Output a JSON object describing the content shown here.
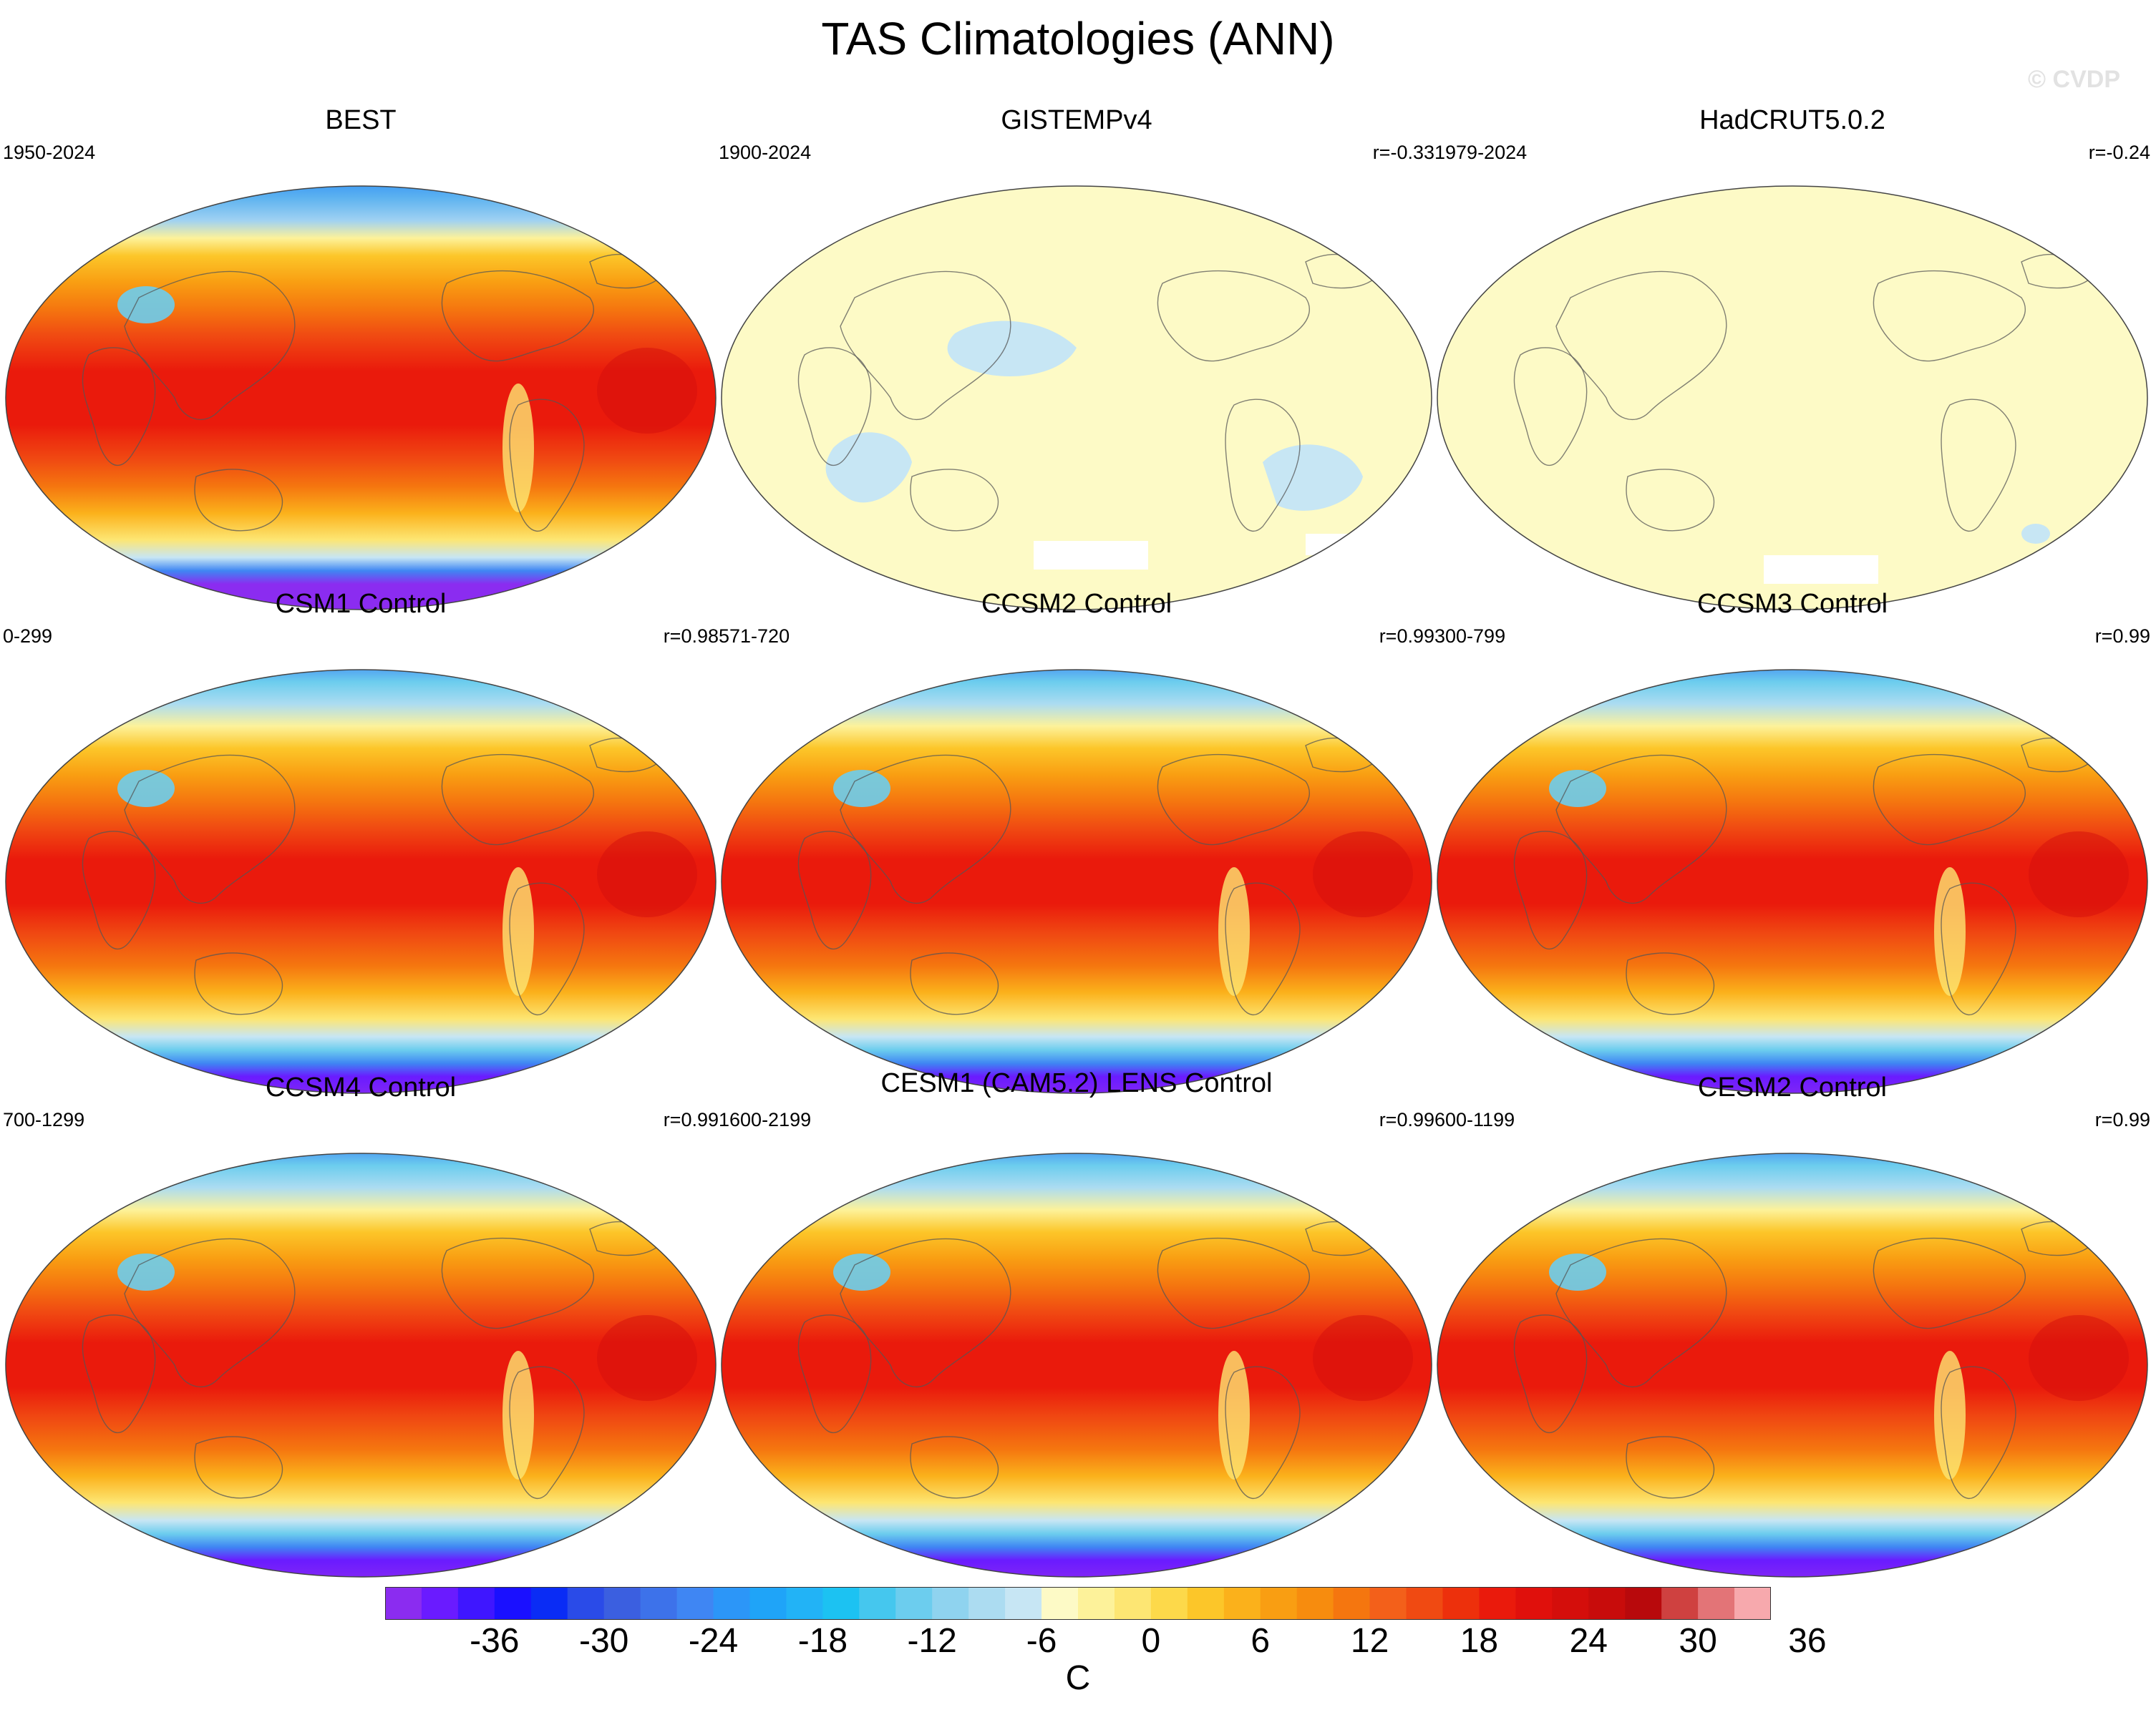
{
  "figure": {
    "title": "TAS Climatologies (ANN)",
    "watermark": "© CVDP",
    "units": "C"
  },
  "colorbar": {
    "tick_labels": [
      "-36",
      "-30",
      "-24",
      "-18",
      "-12",
      "-6",
      "0",
      "6",
      "12",
      "18",
      "24",
      "30",
      "36"
    ],
    "colors": [
      "#8b2cf0",
      "#6a1bff",
      "#3f16ff",
      "#1a10ff",
      "#0a2cf5",
      "#2a4be8",
      "#3b5fe0",
      "#3d72ea",
      "#3f86f3",
      "#2c96f8",
      "#1fa4f8",
      "#22b3f6",
      "#1cc2f2",
      "#45c7ee",
      "#6ccdee",
      "#8fd3ef",
      "#acdcf1",
      "#c7e6f4",
      "#fdfac6",
      "#fdf29a",
      "#fde673",
      "#fdd94a",
      "#fcc629",
      "#fbb11b",
      "#f99e12",
      "#f78c0e",
      "#f5760f",
      "#f3601a",
      "#f04a12",
      "#ed300c",
      "#ea1a0c",
      "#e0100c",
      "#d40e0b",
      "#c80c0b",
      "#b8090c",
      "#cf4140",
      "#e37477",
      "#f7a9ad"
    ]
  },
  "panels": [
    {
      "title": "BEST",
      "period": "1950-2024",
      "corr": "",
      "style": "obs"
    },
    {
      "title": "GISTEMPv4",
      "period": "1900-2024",
      "corr": "r=-0.33",
      "style": "pale1"
    },
    {
      "title": "HadCRUT5.0.2",
      "period": "1979-2024",
      "corr": "r=-0.24",
      "style": "pale2"
    },
    {
      "title": "CSM1 Control",
      "period": "0-299",
      "corr": "r=0.98",
      "style": "model"
    },
    {
      "title": "CCSM2 Control",
      "period": "571-720",
      "corr": "r=0.99",
      "style": "model"
    },
    {
      "title": "CCSM3 Control",
      "period": "300-799",
      "corr": "r=0.99",
      "style": "model"
    },
    {
      "title": "CCSM4 Control",
      "period": "700-1299",
      "corr": "r=0.99",
      "style": "model"
    },
    {
      "title": "CESM1 (CAM5.2) LENS Control",
      "period": "1600-2199",
      "corr": "r=0.99",
      "style": "model"
    },
    {
      "title": "CESM2 Control",
      "period": "600-1199",
      "corr": "r=0.99",
      "style": "model"
    }
  ]
}
